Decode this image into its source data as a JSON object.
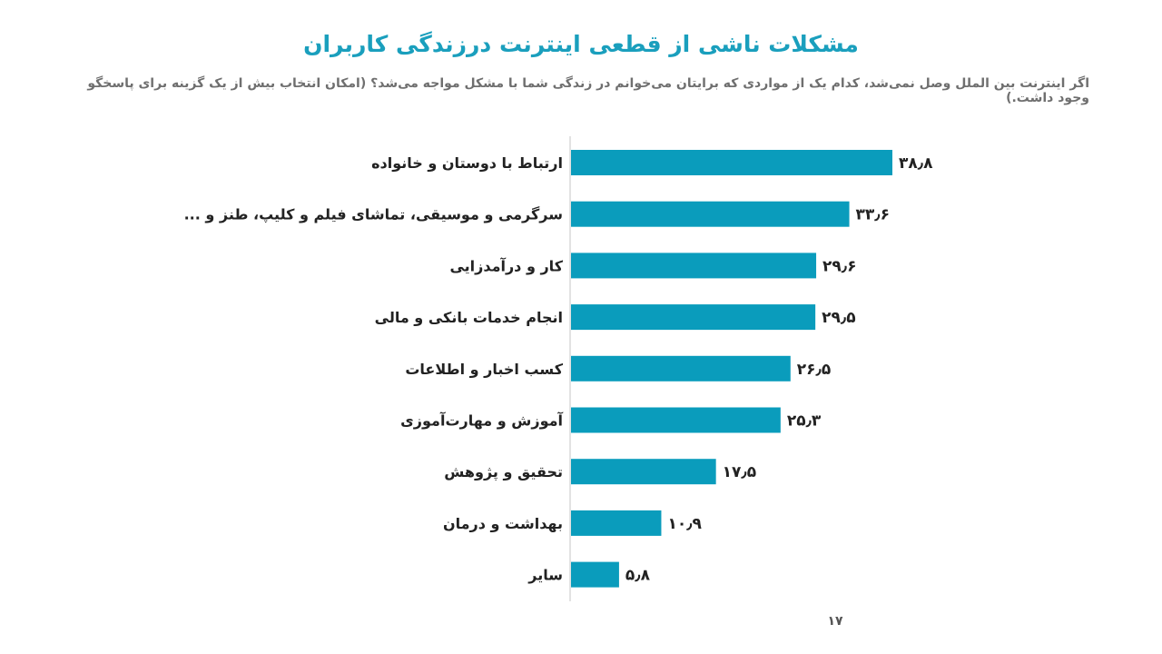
{
  "title": "مشکلات ناشی از قطعی اینترنت درزندگی کاربران",
  "subtitle": "اگر اینترنت بین الملل وصل نمی‌شد، کدام یک از مواردی که برایتان می‌خوانم در زندگی شما با مشکل مواجه می‌شد؟ (امکان انتخاب بیش از یک گزینه برای پاسخگو وجود داشت.)",
  "page_number": "۱۷",
  "colors": {
    "bar": "#0a9cbc",
    "title": "#1a9fbd",
    "axis": "#d9d9d9"
  },
  "chart_data": {
    "type": "bar",
    "orientation": "horizontal",
    "categories": [
      "ارتباط با دوستان و خانواده",
      "سرگرمی و موسیقی، تماشای فیلم و کلیپ، طنز و ...",
      "کار و درآمدزایی",
      "انجام خدمات بانکی و مالی",
      "کسب اخبار و اطلاعات",
      "آموزش و مهارت‌آموزی",
      "تحقیق و پژوهش",
      "بهداشت و درمان",
      "سایر"
    ],
    "values": [
      38.8,
      33.6,
      29.6,
      29.5,
      26.5,
      25.3,
      17.5,
      10.9,
      5.8
    ],
    "value_labels": [
      "۳۸٫۸",
      "۳۳٫۶",
      "۲۹٫۶",
      "۲۹٫۵",
      "۲۶٫۵",
      "۲۵٫۳",
      "۱۷٫۵",
      "۱۰٫۹",
      "۵٫۸"
    ],
    "xlim": [
      0,
      60
    ],
    "grid": false
  }
}
